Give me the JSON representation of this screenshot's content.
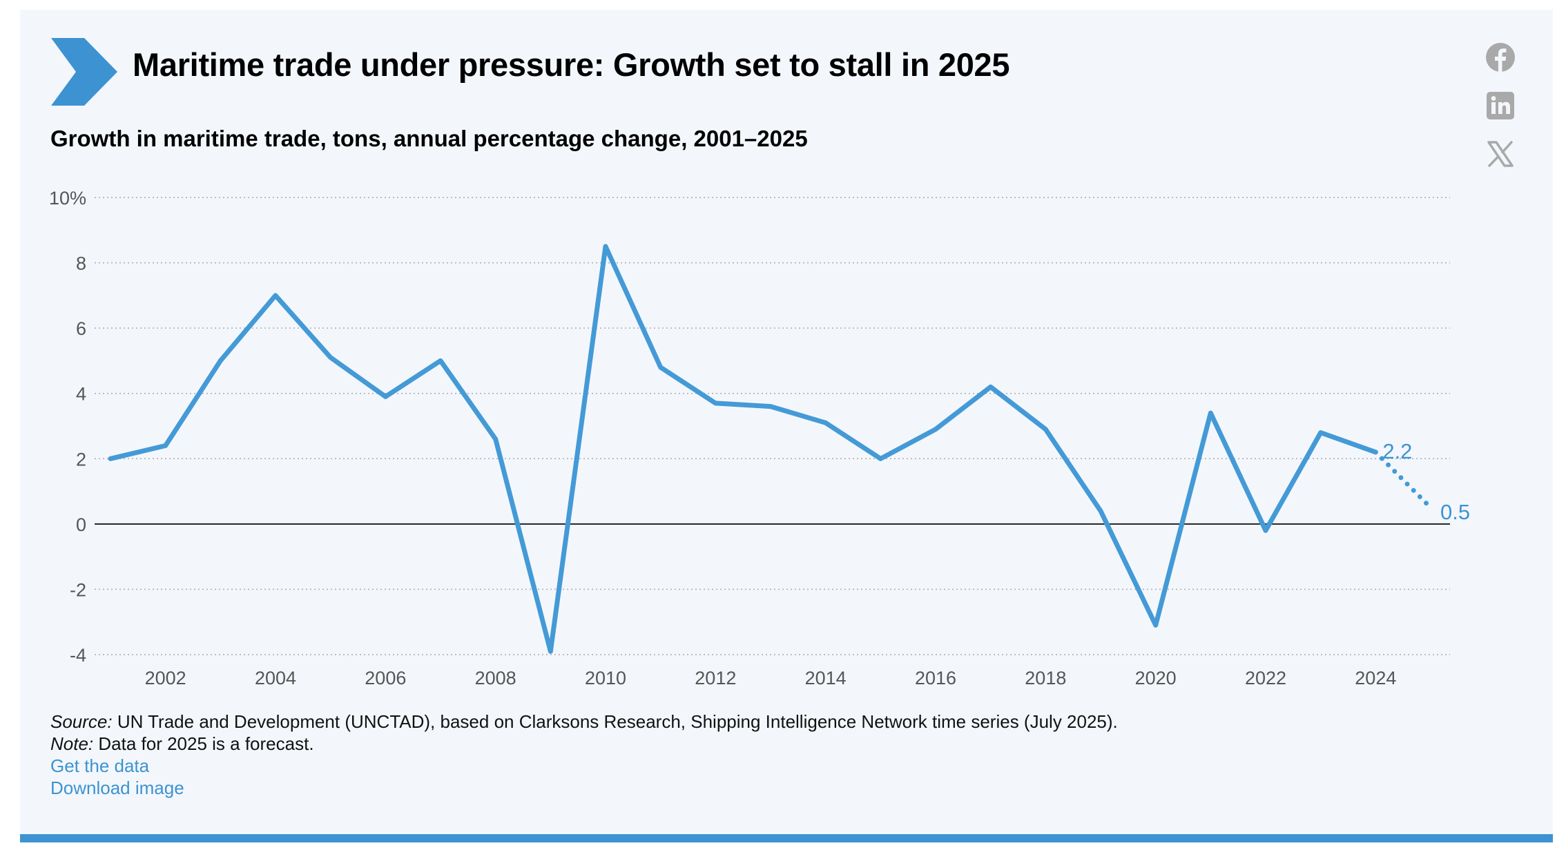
{
  "header": {
    "title": "Maritime trade under pressure: Growth set to stall in 2025",
    "subtitle": "Growth in maritime trade, tons, annual percentage change, 2001–2025"
  },
  "social": {
    "icons": [
      "facebook-icon",
      "linkedin-icon",
      "x-icon"
    ]
  },
  "colors": {
    "accent": "#3d93d1",
    "background": "#f3f7fc",
    "line": "#449ad6"
  },
  "footer": {
    "source_label": "Source:",
    "source_text": " UN Trade and Development (UNCTAD), based on Clarksons Research, Shipping Intelligence Network time series (July 2025).",
    "note_label": "Note:",
    "note_text": " Data for 2025 is a forecast.",
    "get_data": "Get the data",
    "download_image": "Download image"
  },
  "chart_data": {
    "type": "line",
    "title": "",
    "xlabel": "",
    "ylabel": "",
    "ylim": [
      -4,
      10
    ],
    "xlim": [
      2001,
      2025
    ],
    "y_ticks": [
      {
        "value": 10,
        "label": "10%"
      },
      {
        "value": 8,
        "label": "8"
      },
      {
        "value": 6,
        "label": "6"
      },
      {
        "value": 4,
        "label": "4"
      },
      {
        "value": 2,
        "label": "2"
      },
      {
        "value": 0,
        "label": "0"
      },
      {
        "value": -2,
        "label": "-2"
      },
      {
        "value": -4,
        "label": "-4"
      }
    ],
    "x_ticks": [
      2002,
      2004,
      2006,
      2008,
      2010,
      2012,
      2014,
      2016,
      2018,
      2020,
      2022,
      2024
    ],
    "grid": true,
    "series": [
      {
        "x": [
          2001,
          2002,
          2003,
          2004,
          2005,
          2006,
          2007,
          2008,
          2009,
          2010,
          2011,
          2012,
          2013,
          2014,
          2015,
          2016,
          2017,
          2018,
          2019,
          2020,
          2021,
          2022,
          2023,
          2024
        ],
        "values": [
          2.0,
          2.4,
          5.0,
          7.0,
          5.1,
          3.9,
          5.0,
          2.6,
          -3.9,
          8.5,
          4.8,
          3.7,
          3.6,
          3.1,
          2.0,
          2.9,
          4.2,
          2.9,
          0.4,
          -3.1,
          3.4,
          -0.2,
          2.8,
          2.2
        ],
        "style": "solid"
      },
      {
        "x": [
          2024,
          2025
        ],
        "values": [
          2.2,
          0.5
        ],
        "style": "dotted"
      }
    ],
    "annotations": [
      {
        "x": 2024,
        "y": 2.2,
        "text": "2.2"
      },
      {
        "x": 2025,
        "y": 0.5,
        "text": "0.5"
      }
    ]
  }
}
